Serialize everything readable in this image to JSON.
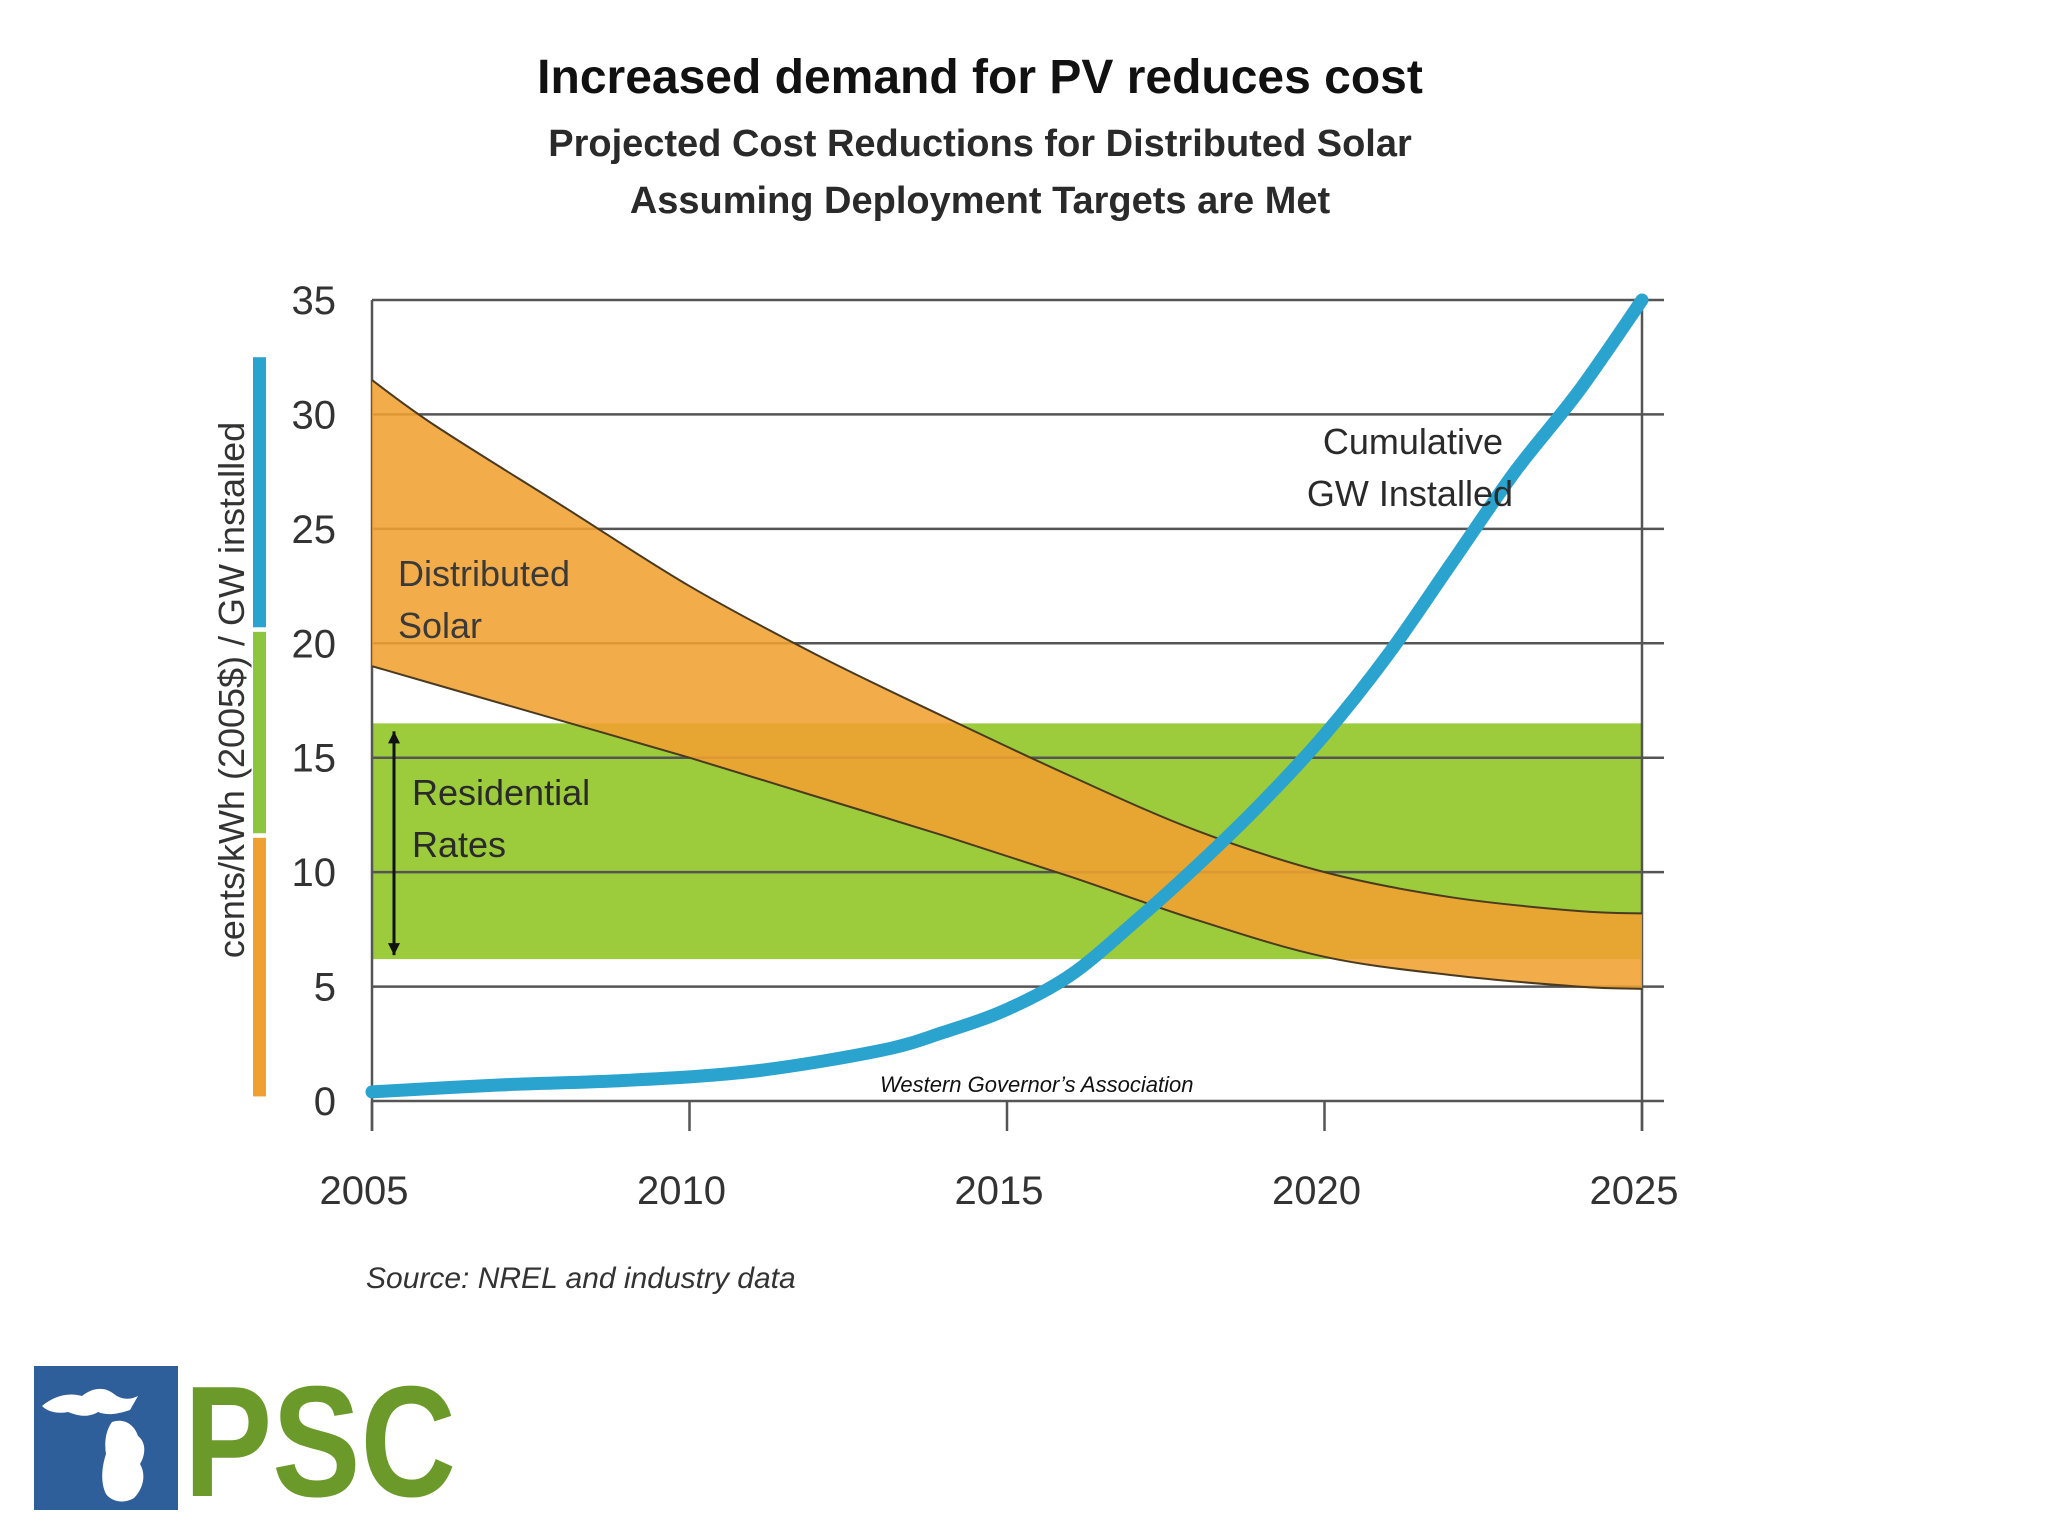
{
  "slide": {
    "title": "Increased demand for PV reduces cost",
    "attribution": "Western Governor’s Association",
    "source": "Source:  NREL and industry data"
  },
  "logo": {
    "text": "PSC",
    "colors": {
      "blue": "#2f5f9a",
      "green": "#6b9a2a"
    }
  },
  "colors": {
    "distributed_solar": "#f0a030",
    "residential_rates": "#9ccb3c",
    "cumulative_gw": "#2aa3cf",
    "grid": "#555555"
  },
  "chart_data": {
    "type": "area",
    "title_lines": [
      "Projected Cost Reductions for Distributed Solar",
      "Assuming Deployment Targets are Met"
    ],
    "xlabel": "",
    "ylabel": "cents/kWh (2005$) / GW installed",
    "xlim": [
      2005,
      2025
    ],
    "ylim": [
      0,
      35
    ],
    "x_ticks": [
      "2005",
      "2010",
      "2015",
      "2020",
      "2025"
    ],
    "y_ticks": [
      "0",
      "5",
      "10",
      "15",
      "20",
      "25",
      "30",
      "35"
    ],
    "grid": true,
    "series": [
      {
        "name": "Distributed Solar",
        "kind": "band",
        "x": [
          2005,
          2006,
          2008,
          2010,
          2012,
          2014,
          2016,
          2018,
          2020,
          2022,
          2024,
          2025
        ],
        "upper": [
          31.5,
          29.5,
          26.0,
          22.5,
          19.5,
          16.8,
          14.2,
          11.8,
          10.0,
          8.9,
          8.3,
          8.2
        ],
        "lower": [
          19.0,
          18.2,
          16.6,
          15.0,
          13.3,
          11.6,
          9.8,
          7.9,
          6.3,
          5.5,
          5.0,
          4.9
        ],
        "label_lines": [
          "Distributed",
          "Solar"
        ]
      },
      {
        "name": "Residential Rates",
        "kind": "range",
        "x_range": [
          2005,
          2025
        ],
        "y_range": [
          6.2,
          16.5
        ],
        "label_lines": [
          "Residential",
          "Rates"
        ]
      },
      {
        "name": "Cumulative GW Installed",
        "kind": "line",
        "x": [
          2005,
          2007,
          2009,
          2011,
          2013,
          2014,
          2015,
          2016,
          2017,
          2018,
          2019,
          2020,
          2021,
          2022,
          2023,
          2024,
          2025
        ],
        "y": [
          0.4,
          0.7,
          0.9,
          1.3,
          2.2,
          3.0,
          4.0,
          5.5,
          7.8,
          10.3,
          13.0,
          16.0,
          19.5,
          23.5,
          27.5,
          31.0,
          35.0
        ],
        "label_lines": [
          "Cumulative",
          "GW Installed"
        ]
      }
    ],
    "axis_color_bar": [
      {
        "from": 0,
        "to": 11.5,
        "color": "#f0a030"
      },
      {
        "from": 11.5,
        "to": 20.5,
        "color": "#8cc63f"
      },
      {
        "from": 20.5,
        "to": 32.5,
        "color": "#2aa3cf"
      }
    ]
  }
}
